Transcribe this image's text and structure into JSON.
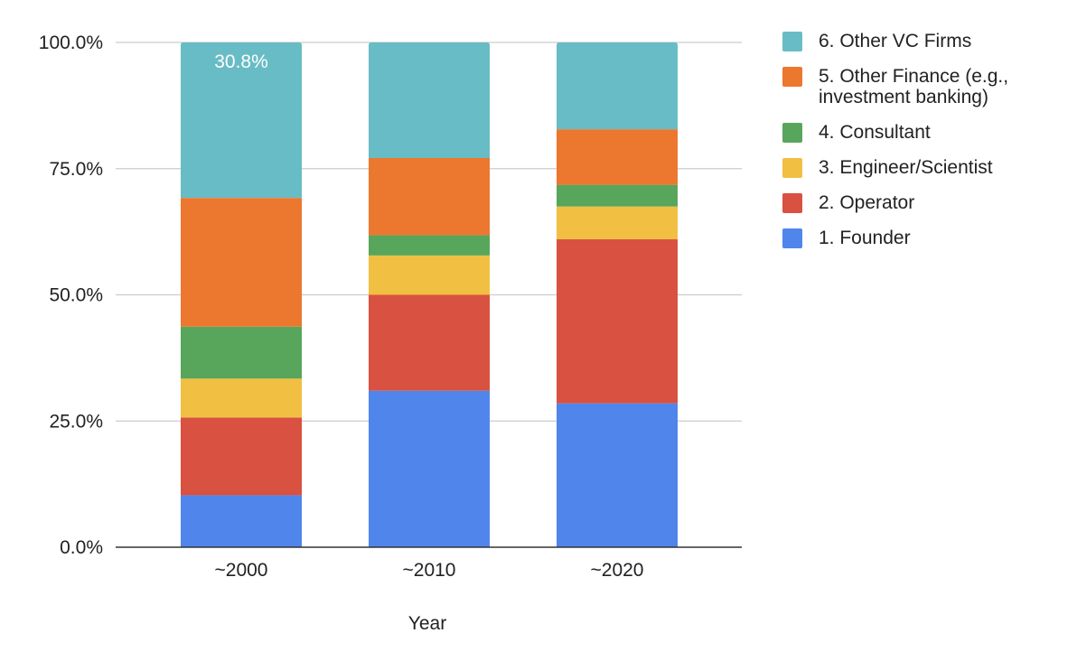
{
  "chart_data": {
    "type": "bar",
    "stacked": true,
    "percent_stacked": true,
    "title": "",
    "xlabel": "Year",
    "ylabel": "",
    "categories": [
      "~2000",
      "~2010",
      "~2020"
    ],
    "ylim": [
      0,
      100
    ],
    "y_ticks": [
      "0.0%",
      "25.0%",
      "50.0%",
      "75.0%",
      "100.0%"
    ],
    "grid": true,
    "legend_position": "right",
    "series": [
      {
        "name": "1. Founder",
        "color": "#5085EC",
        "values": [
          10.3,
          31.0,
          28.5
        ]
      },
      {
        "name": "2. Operator",
        "color": "#D95141",
        "values": [
          15.4,
          19.0,
          32.5
        ]
      },
      {
        "name": "3. Engineer/Scientist",
        "color": "#F1BF42",
        "values": [
          7.7,
          7.8,
          6.5
        ]
      },
      {
        "name": "4. Consultant",
        "color": "#58A65C",
        "values": [
          10.3,
          4.0,
          4.3
        ]
      },
      {
        "name": "5. Other Finance (e.g., investment banking)",
        "color": "#EC772F",
        "values": [
          25.5,
          15.3,
          11.0
        ]
      },
      {
        "name": "6. Other VC Firms",
        "color": "#68BCC5",
        "values": [
          30.8,
          22.9,
          17.2
        ]
      }
    ],
    "data_labels": [
      {
        "series": 5,
        "category": 0,
        "text": "30.8%"
      }
    ]
  }
}
